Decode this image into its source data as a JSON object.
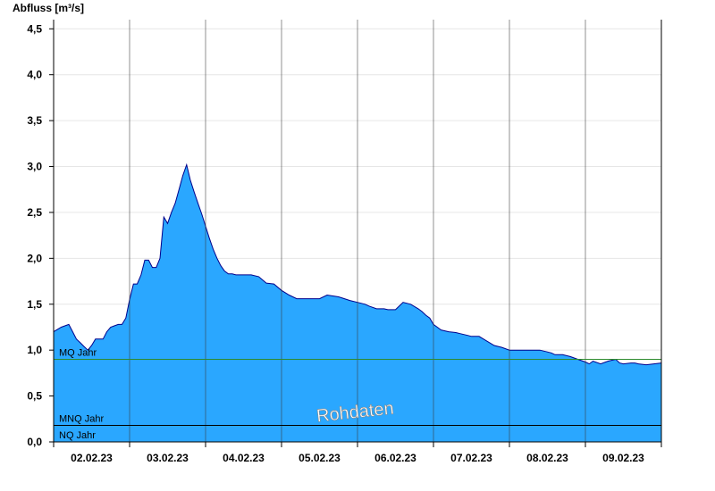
{
  "chart_data": {
    "type": "area",
    "ylabel": "Abfluss [m³/s]",
    "xlabel": "",
    "ylim": [
      0,
      4.6
    ],
    "yticks": [
      "0,0",
      "0,5",
      "1,0",
      "1,5",
      "2,0",
      "2,5",
      "3,0",
      "3,5",
      "4,0",
      "4,5"
    ],
    "xticks": [
      "02.02.23",
      "03.02.23",
      "04.02.23",
      "05.02.23",
      "06.02.23",
      "07.02.23",
      "08.02.23",
      "09.02.23"
    ],
    "x_unit": "days since 01.02.23 12:00",
    "series": [
      {
        "color": "#2aa7ff",
        "line_color": "#00008b",
        "x": [
          0.0,
          0.1,
          0.2,
          0.25,
          0.3,
          0.35,
          0.4,
          0.45,
          0.5,
          0.55,
          0.6,
          0.65,
          0.7,
          0.75,
          0.85,
          0.9,
          0.95,
          1.0,
          1.05,
          1.1,
          1.15,
          1.2,
          1.25,
          1.3,
          1.35,
          1.4,
          1.45,
          1.5,
          1.55,
          1.6,
          1.65,
          1.7,
          1.75,
          1.8,
          1.85,
          1.9,
          1.95,
          2.0,
          2.05,
          2.1,
          2.15,
          2.2,
          2.25,
          2.3,
          2.35,
          2.4,
          2.5,
          2.6,
          2.7,
          2.8,
          2.9,
          3.0,
          3.1,
          3.2,
          3.25,
          3.3,
          3.35,
          3.5,
          3.6,
          3.75,
          3.9,
          4.0,
          4.1,
          4.15,
          4.25,
          4.35,
          4.4,
          4.5,
          4.6,
          4.7,
          4.8,
          4.85,
          4.9,
          4.95,
          5.0,
          5.05,
          5.1,
          5.2,
          5.3,
          5.35,
          5.45,
          5.5,
          5.6,
          5.7,
          5.8,
          5.9,
          6.0,
          6.1,
          6.2,
          6.3,
          6.4,
          6.5,
          6.55,
          6.6,
          6.7,
          6.8,
          6.9,
          7.0,
          7.05,
          7.1,
          7.2,
          7.3,
          7.4,
          7.45,
          7.5,
          7.6,
          7.65,
          7.7,
          7.8,
          7.9,
          8.0
        ],
        "y": [
          1.2,
          1.25,
          1.28,
          1.2,
          1.12,
          1.08,
          1.04,
          1.0,
          1.05,
          1.12,
          1.12,
          1.12,
          1.2,
          1.25,
          1.28,
          1.28,
          1.35,
          1.55,
          1.72,
          1.72,
          1.82,
          1.98,
          1.98,
          1.9,
          1.9,
          2.0,
          2.45,
          2.38,
          2.5,
          2.6,
          2.75,
          2.9,
          3.02,
          2.85,
          2.72,
          2.6,
          2.48,
          2.35,
          2.22,
          2.1,
          2.0,
          1.92,
          1.86,
          1.83,
          1.83,
          1.82,
          1.82,
          1.82,
          1.8,
          1.73,
          1.72,
          1.65,
          1.6,
          1.56,
          1.56,
          1.56,
          1.56,
          1.56,
          1.6,
          1.58,
          1.54,
          1.52,
          1.5,
          1.48,
          1.45,
          1.45,
          1.44,
          1.44,
          1.52,
          1.5,
          1.45,
          1.42,
          1.38,
          1.35,
          1.28,
          1.25,
          1.22,
          1.2,
          1.19,
          1.18,
          1.16,
          1.15,
          1.15,
          1.1,
          1.05,
          1.03,
          1.0,
          1.0,
          1.0,
          1.0,
          1.0,
          0.98,
          0.97,
          0.95,
          0.95,
          0.93,
          0.9,
          0.87,
          0.85,
          0.88,
          0.85,
          0.88,
          0.9,
          0.86,
          0.85,
          0.86,
          0.86,
          0.85,
          0.84,
          0.85,
          0.86
        ]
      }
    ],
    "xlim": [
      0,
      8.0
    ],
    "hlines": [
      {
        "label": "MQ Jahr",
        "value": 0.9,
        "color": "#2e8b2e"
      },
      {
        "label": "MNQ Jahr",
        "value": 0.18,
        "color": "#000000"
      },
      {
        "label": "NQ Jahr",
        "value": 0.0,
        "color": "#000000"
      }
    ],
    "watermark": "Rohdaten",
    "grid": true
  }
}
